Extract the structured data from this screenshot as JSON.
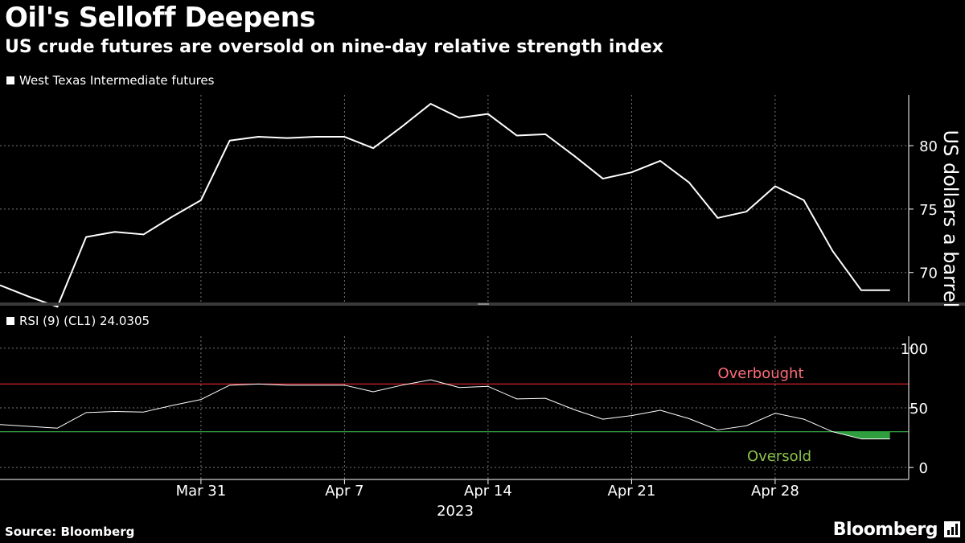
{
  "header": {
    "title": "Oil's Selloff Deepens",
    "subtitle": "US crude futures are oversold on nine-day relative strength index"
  },
  "footer": {
    "source": "Source: Bloomberg",
    "brand": "Bloomberg"
  },
  "colors": {
    "background": "#000000",
    "line": "#ffffff",
    "overbought": "#e8262d",
    "overbought_label": "#ff6b7a",
    "oversold": "#39b54a",
    "oversold_label": "#8bc34a",
    "grid": "#777777"
  },
  "chart_data": [
    {
      "type": "line",
      "legend": "West Texas Intermediate futures",
      "ylabel": "US dollars a barrel",
      "ylim": [
        67.7,
        84.0
      ],
      "yticks": [
        70,
        75,
        80
      ],
      "series": [
        {
          "name": "West Texas Intermediate futures",
          "values": [
            69.0,
            68.1,
            67.3,
            72.8,
            73.2,
            73.0,
            74.4,
            75.7,
            80.4,
            80.7,
            80.6,
            80.7,
            80.7,
            79.8,
            81.5,
            83.3,
            82.2,
            82.5,
            80.8,
            80.9,
            79.2,
            77.4,
            77.9,
            78.8,
            77.1,
            74.3,
            74.8,
            76.8,
            75.7,
            71.7,
            68.6,
            68.6
          ]
        }
      ]
    },
    {
      "type": "line",
      "legend": "RSI (9) (CL1) 24.0305",
      "ylim": [
        -10,
        110
      ],
      "yticks": [
        0,
        50,
        100
      ],
      "overbought": {
        "value": 70,
        "label": "Overbought"
      },
      "oversold": {
        "value": 30,
        "label": "Oversold"
      },
      "series": [
        {
          "name": "RSI (9) (CL1)",
          "values": [
            36.0,
            34.5,
            33.0,
            46.0,
            47.0,
            46.5,
            52.0,
            57.0,
            69.0,
            70.0,
            69.0,
            69.0,
            69.0,
            63.5,
            69.0,
            73.5,
            67.0,
            68.0,
            57.5,
            58.0,
            48.5,
            40.5,
            43.5,
            48.0,
            41.0,
            31.5,
            35.0,
            45.5,
            40.5,
            30.0,
            24.0,
            24.0
          ]
        }
      ]
    }
  ],
  "xaxis": {
    "ticks": [
      {
        "index": 7,
        "label": "Mar 31"
      },
      {
        "index": 12,
        "label": "Apr 7"
      },
      {
        "index": 17,
        "label": "Apr 14"
      },
      {
        "index": 22,
        "label": "Apr 21"
      },
      {
        "index": 27,
        "label": "Apr 28"
      }
    ],
    "year": "2023"
  }
}
